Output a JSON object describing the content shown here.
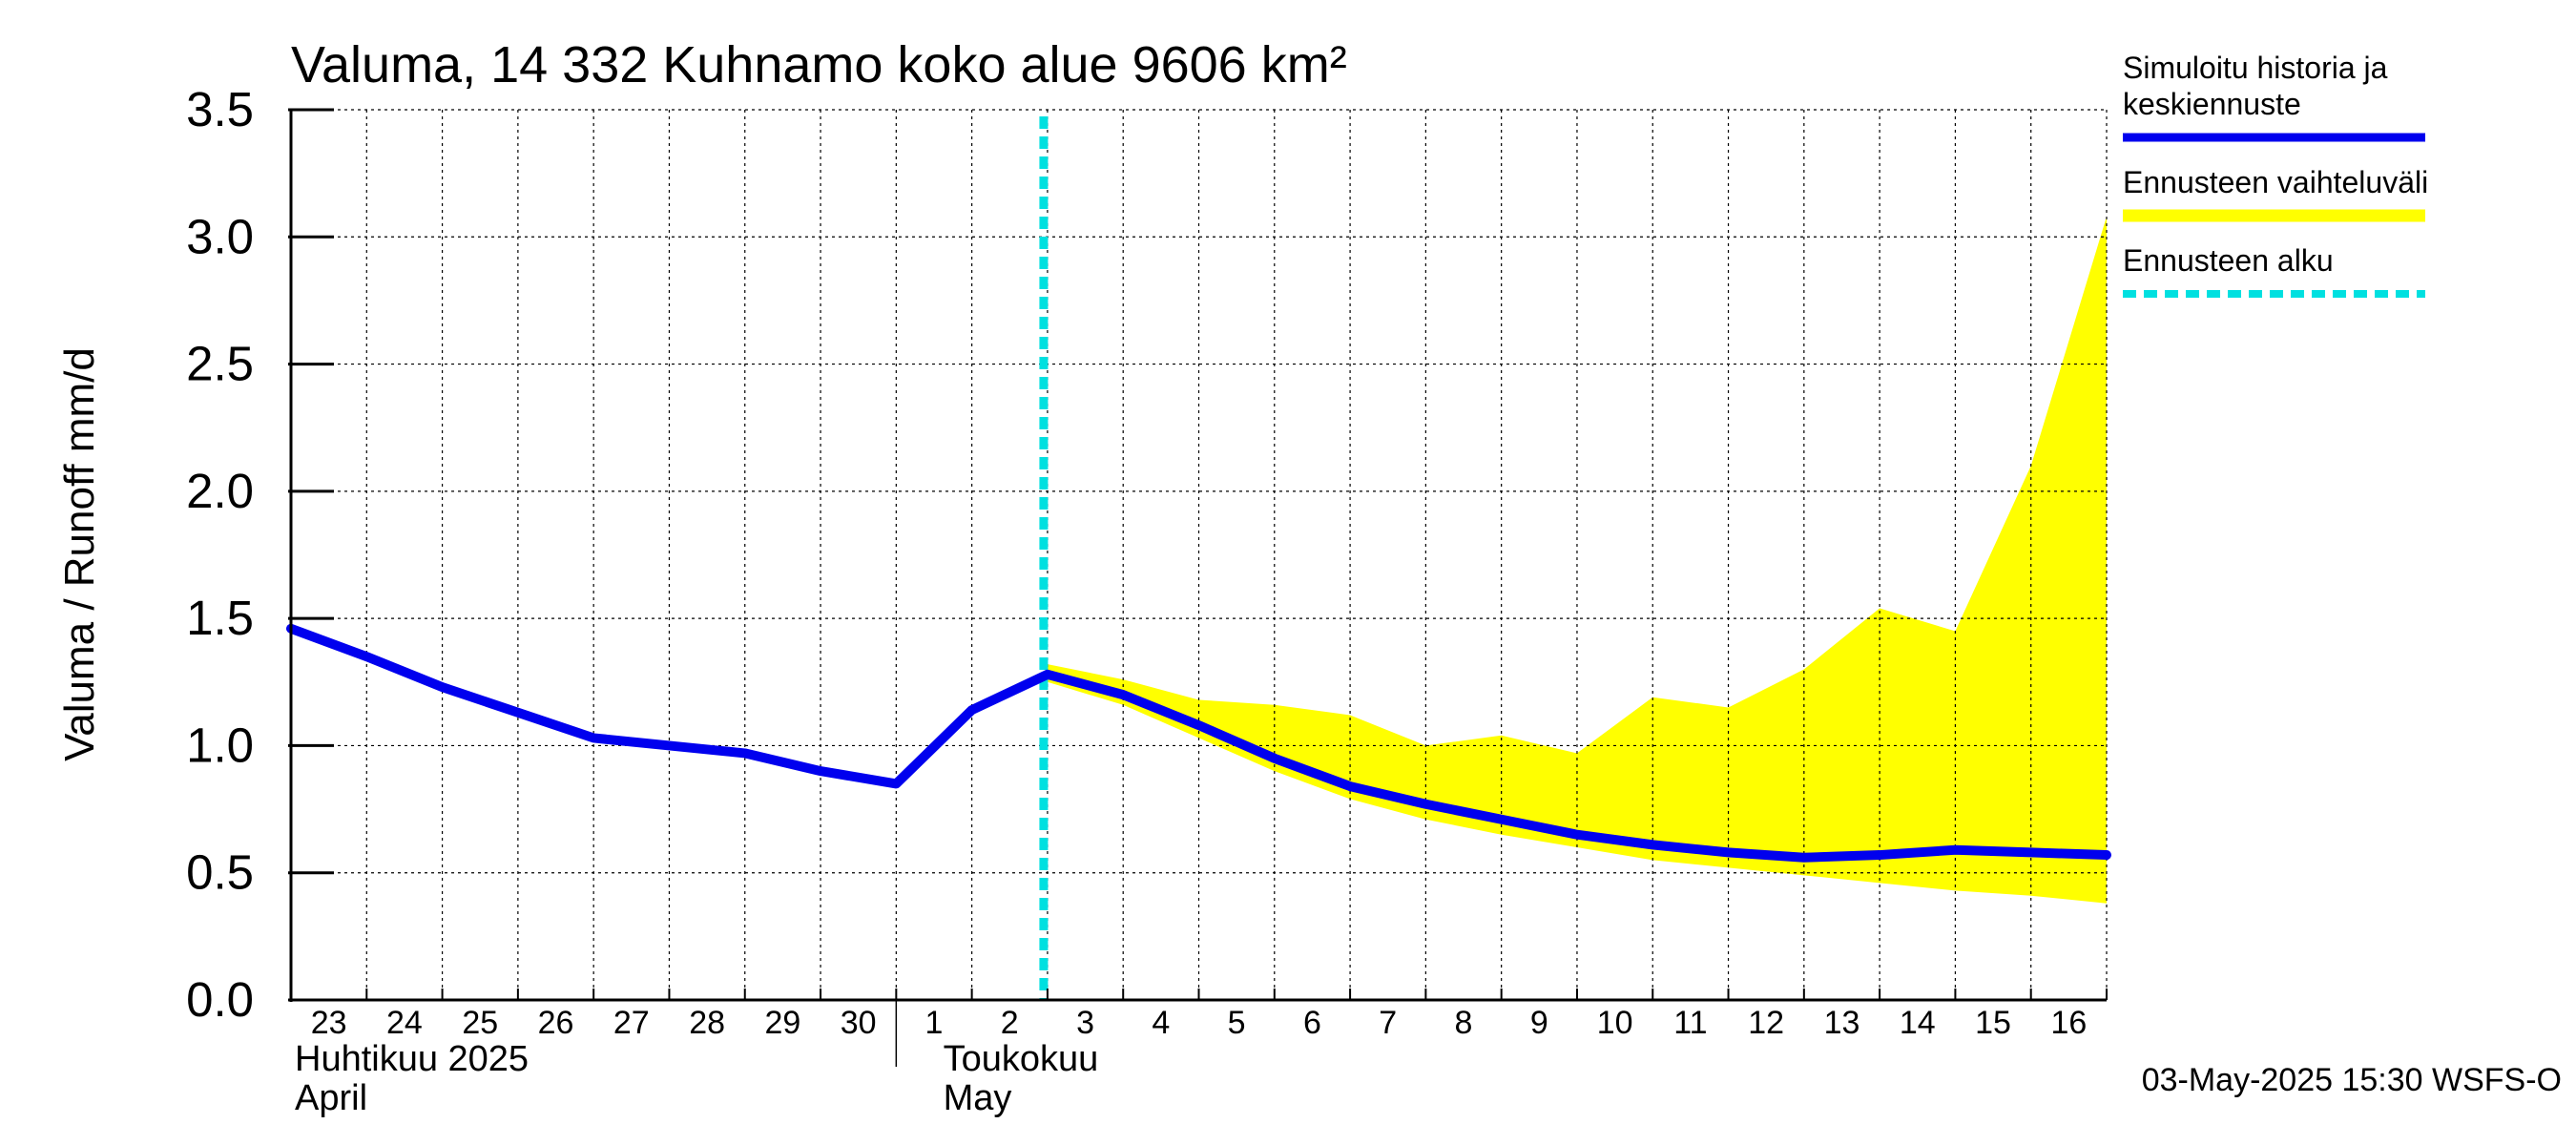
{
  "chart_data": {
    "type": "line",
    "title": "Valuma, 14 332 Kuhnamo koko alue 9606 km²",
    "ylabel": "Valuma / Runoff    mm/d",
    "ylim": [
      0,
      3.5
    ],
    "yticks": [
      "0.0",
      "0.5",
      "1.0",
      "1.5",
      "2.0",
      "2.5",
      "3.0",
      "3.5"
    ],
    "grid": true,
    "legend_position": "right",
    "x_start": "2025-04-23",
    "x_end": "2025-05-17",
    "x_tick_labels": [
      "23",
      "24",
      "25",
      "26",
      "27",
      "28",
      "29",
      "30",
      "1",
      "2",
      "3",
      "4",
      "5",
      "6",
      "7",
      "8",
      "9",
      "10",
      "11",
      "12",
      "13",
      "14",
      "15",
      "16"
    ],
    "month_labels": [
      {
        "line1": "Huhtikuu  2025",
        "line2": "April"
      },
      {
        "line1": "Toukokuu",
        "line2": "May"
      }
    ],
    "forecast_start": "2025-05-03",
    "series": [
      {
        "name": "Simuloitu historia ja keskiennuste",
        "color": "#0000ee",
        "x": [
          "2025-04-23",
          "2025-04-24",
          "2025-04-25",
          "2025-04-26",
          "2025-04-27",
          "2025-04-28",
          "2025-04-29",
          "2025-04-30",
          "2025-05-01",
          "2025-05-02",
          "2025-05-03",
          "2025-05-04",
          "2025-05-05",
          "2025-05-06",
          "2025-05-07",
          "2025-05-08",
          "2025-05-09",
          "2025-05-10",
          "2025-05-11",
          "2025-05-12",
          "2025-05-13",
          "2025-05-14",
          "2025-05-15",
          "2025-05-16",
          "2025-05-17"
        ],
        "values": [
          1.46,
          1.35,
          1.23,
          1.13,
          1.03,
          1.0,
          0.97,
          0.9,
          0.85,
          1.14,
          1.28,
          1.2,
          1.08,
          0.95,
          0.84,
          0.77,
          0.71,
          0.65,
          0.61,
          0.58,
          0.56,
          0.57,
          0.59,
          0.58,
          0.57
        ]
      }
    ],
    "band": {
      "name": "Ennusteen vaihteluväli",
      "color": "#ffff00",
      "x": [
        "2025-05-03",
        "2025-05-04",
        "2025-05-05",
        "2025-05-06",
        "2025-05-07",
        "2025-05-08",
        "2025-05-09",
        "2025-05-10",
        "2025-05-11",
        "2025-05-12",
        "2025-05-13",
        "2025-05-14",
        "2025-05-15",
        "2025-05-16",
        "2025-05-17"
      ],
      "upper": [
        1.32,
        1.26,
        1.18,
        1.16,
        1.12,
        1.0,
        1.04,
        0.97,
        1.19,
        1.15,
        1.3,
        1.54,
        1.45,
        2.1,
        3.08
      ],
      "lower": [
        1.25,
        1.16,
        1.03,
        0.9,
        0.79,
        0.71,
        0.65,
        0.6,
        0.55,
        0.52,
        0.49,
        0.46,
        0.43,
        0.41,
        0.38
      ]
    },
    "legend": [
      {
        "label_lines": [
          "Simuloitu historia ja",
          "keskiennuste"
        ],
        "style": "line",
        "color": "#0000ee"
      },
      {
        "label_lines": [
          "Ennusteen vaihteluväli"
        ],
        "style": "band",
        "color": "#ffff00"
      },
      {
        "label_lines": [
          "Ennusteen alku"
        ],
        "style": "dashed",
        "color": "#00e0e0"
      }
    ],
    "footer": "03-May-2025 15:30 WSFS-O"
  }
}
